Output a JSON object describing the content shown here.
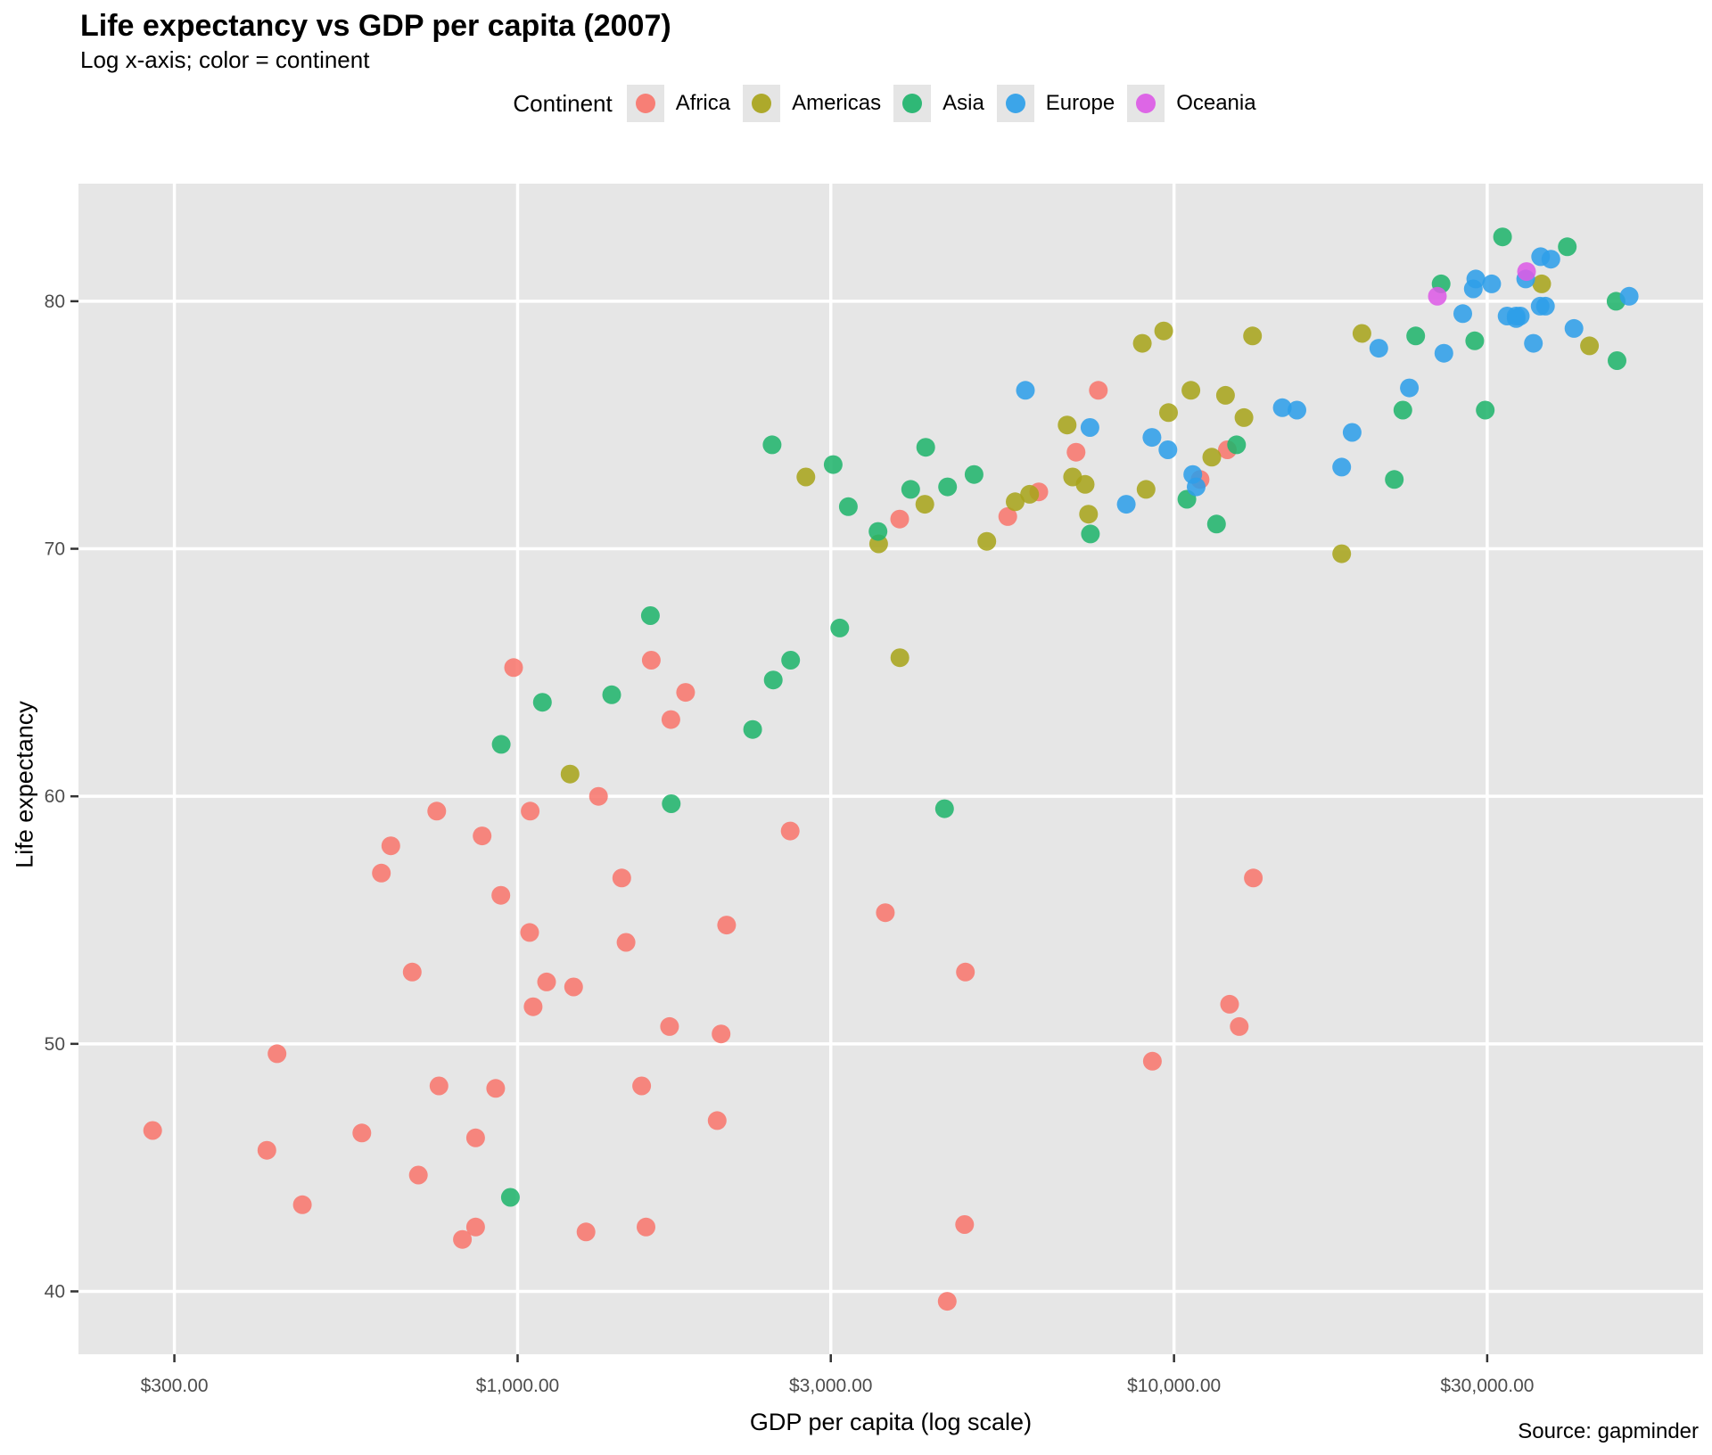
{
  "header": {
    "title": "Life expectancy vs GDP per capita (2007)",
    "subtitle": "Log x-axis; color = continent"
  },
  "footer": {
    "caption": "Source: gapminder"
  },
  "legend": {
    "title": "Continent",
    "key_bg": "#E5E5E5",
    "items": [
      {
        "label": "Africa",
        "color": "#F8766D"
      },
      {
        "label": "Americas",
        "color": "#A8A41B"
      },
      {
        "label": "Asia",
        "color": "#20B46C"
      },
      {
        "label": "Europe",
        "color": "#2E9FE9"
      },
      {
        "label": "Oceania",
        "color": "#DC5BE6"
      }
    ]
  },
  "style": {
    "panel_bg": "#E6E6E6",
    "grid_color": "#FFFFFF",
    "grid_width": 3.5,
    "tick_color": "#333333",
    "tick_label_color": "#4D4D4D",
    "point_radius": 10.5,
    "point_opacity": 0.87
  },
  "chart_data": {
    "type": "scatter",
    "title": "Life expectancy vs GDP per capita (2007)",
    "subtitle": "Log x-axis; color = continent",
    "caption": "Source: gapminder",
    "legend_position": "top",
    "grid": "major-only",
    "x_axis": {
      "label": "GDP per capita (log scale)",
      "scale": "log10",
      "domain_log10": [
        2.331,
        4.806
      ],
      "ticks": [
        {
          "value": 300,
          "label": "$300.00"
        },
        {
          "value": 1000,
          "label": "$1,000.00"
        },
        {
          "value": 3000,
          "label": "$3,000.00"
        },
        {
          "value": 10000,
          "label": "$10,000.00"
        },
        {
          "value": 30000,
          "label": "$30,000.00"
        }
      ]
    },
    "y_axis": {
      "label": "Life expectancy",
      "scale": "linear",
      "domain": [
        37.46,
        84.75
      ],
      "ticks": [
        {
          "value": 40,
          "label": "40"
        },
        {
          "value": 50,
          "label": "50"
        },
        {
          "value": 60,
          "label": "60"
        },
        {
          "value": 70,
          "label": "70"
        },
        {
          "value": 80,
          "label": "80"
        }
      ]
    },
    "series": [
      {
        "name": "Africa",
        "color": "#F8766D",
        "points": [
          [
            6223,
            72.3
          ],
          [
            4797,
            42.7
          ],
          [
            1441,
            56.7
          ],
          [
            12570,
            50.7
          ],
          [
            1217,
            52.3
          ],
          [
            430,
            49.6
          ],
          [
            2042,
            50.4
          ],
          [
            706,
            44.7
          ],
          [
            1704,
            50.7
          ],
          [
            986,
            65.2
          ],
          [
            278,
            46.5
          ],
          [
            3633,
            55.3
          ],
          [
            1545,
            48.3
          ],
          [
            2082,
            54.8
          ],
          [
            5581,
            71.3
          ],
          [
            12154,
            51.6
          ],
          [
            641,
            58.0
          ],
          [
            691,
            52.9
          ],
          [
            13206,
            56.7
          ],
          [
            753,
            59.4
          ],
          [
            1328,
            60.0
          ],
          [
            943,
            56.0
          ],
          [
            579,
            46.4
          ],
          [
            1463,
            54.1
          ],
          [
            1569,
            42.6
          ],
          [
            415,
            45.7
          ],
          [
            12057,
            74.0
          ],
          [
            1045,
            59.4
          ],
          [
            759,
            48.3
          ],
          [
            1043,
            54.5
          ],
          [
            1803,
            64.2
          ],
          [
            10957,
            72.8
          ],
          [
            3820,
            71.2
          ],
          [
            824,
            42.1
          ],
          [
            4811,
            52.9
          ],
          [
            620,
            56.9
          ],
          [
            2014,
            46.9
          ],
          [
            7670,
            76.4
          ],
          [
            863,
            46.2
          ],
          [
            1598,
            65.5
          ],
          [
            1712,
            63.1
          ],
          [
            863,
            42.6
          ],
          [
            926,
            48.2
          ],
          [
            9270,
            49.3
          ],
          [
            2602,
            58.6
          ],
          [
            4513,
            39.6
          ],
          [
            1107,
            52.5
          ],
          [
            883,
            58.4
          ],
          [
            7093,
            73.9
          ],
          [
            1056,
            51.5
          ],
          [
            1271,
            42.4
          ],
          [
            470,
            43.5
          ]
        ]
      },
      {
        "name": "Americas",
        "color": "#A8A41B",
        "points": [
          [
            12779,
            75.3
          ],
          [
            3822,
            65.6
          ],
          [
            9066,
            72.4
          ],
          [
            36319,
            80.7
          ],
          [
            13172,
            78.6
          ],
          [
            7007,
            72.9
          ],
          [
            9645,
            78.8
          ],
          [
            8948,
            78.3
          ],
          [
            6025,
            72.2
          ],
          [
            6873,
            75.0
          ],
          [
            5728,
            71.9
          ],
          [
            5186,
            70.3
          ],
          [
            1202,
            60.9
          ],
          [
            3548,
            70.2
          ],
          [
            7321,
            72.6
          ],
          [
            11978,
            76.2
          ],
          [
            2749,
            72.9
          ],
          [
            9809,
            75.5
          ],
          [
            4173,
            71.8
          ],
          [
            7409,
            71.4
          ],
          [
            19329,
            78.7
          ],
          [
            18009,
            69.8
          ],
          [
            42952,
            78.2
          ],
          [
            10611,
            76.4
          ],
          [
            11416,
            73.7
          ]
        ]
      },
      {
        "name": "Asia",
        "color": "#20B46C",
        "points": [
          [
            975,
            43.8
          ],
          [
            29796,
            75.6
          ],
          [
            1391,
            64.1
          ],
          [
            1714,
            59.7
          ],
          [
            4959,
            73.0
          ],
          [
            39725,
            82.2
          ],
          [
            2452,
            64.7
          ],
          [
            3541,
            70.7
          ],
          [
            11606,
            71.0
          ],
          [
            4471,
            59.5
          ],
          [
            25523,
            80.7
          ],
          [
            31656,
            82.6
          ],
          [
            4519,
            72.5
          ],
          [
            1593,
            67.3
          ],
          [
            23348,
            78.6
          ],
          [
            47307,
            77.6
          ],
          [
            10461,
            72.0
          ],
          [
            12452,
            74.2
          ],
          [
            3096,
            66.8
          ],
          [
            944,
            62.1
          ],
          [
            1091,
            63.8
          ],
          [
            22316,
            75.6
          ],
          [
            2606,
            65.5
          ],
          [
            3190,
            71.7
          ],
          [
            21655,
            72.8
          ],
          [
            47143,
            80.0
          ],
          [
            3970,
            72.4
          ],
          [
            4185,
            74.1
          ],
          [
            28718,
            78.4
          ],
          [
            7458,
            70.6
          ],
          [
            2442,
            74.2
          ],
          [
            3025,
            73.4
          ],
          [
            2281,
            62.7
          ]
        ]
      },
      {
        "name": "Europe",
        "color": "#2E9FE9",
        "points": [
          [
            5937,
            76.4
          ],
          [
            36126,
            79.8
          ],
          [
            33693,
            79.4
          ],
          [
            7446,
            74.9
          ],
          [
            10681,
            73.0
          ],
          [
            14619,
            75.7
          ],
          [
            22833,
            76.5
          ],
          [
            35278,
            78.3
          ],
          [
            33207,
            79.3
          ],
          [
            30470,
            80.7
          ],
          [
            32170,
            79.4
          ],
          [
            27538,
            79.5
          ],
          [
            18009,
            73.3
          ],
          [
            36181,
            81.8
          ],
          [
            40676,
            78.9
          ],
          [
            28570,
            80.5
          ],
          [
            9254,
            74.5
          ],
          [
            36798,
            79.8
          ],
          [
            49357,
            80.2
          ],
          [
            15390,
            75.6
          ],
          [
            20510,
            78.1
          ],
          [
            10808,
            72.5
          ],
          [
            9787,
            74.0
          ],
          [
            18678,
            74.7
          ],
          [
            25768,
            77.9
          ],
          [
            28821,
            80.9
          ],
          [
            34341,
            80.9
          ],
          [
            37506,
            81.7
          ],
          [
            8458,
            71.8
          ],
          [
            33203,
            79.4
          ]
        ]
      },
      {
        "name": "Oceania",
        "color": "#DC5BE6",
        "points": [
          [
            34435,
            81.2
          ],
          [
            25185,
            80.2
          ]
        ]
      }
    ]
  }
}
